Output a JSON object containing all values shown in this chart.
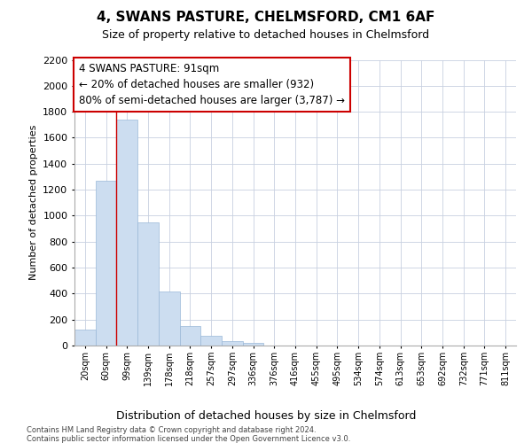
{
  "title": "4, SWANS PASTURE, CHELMSFORD, CM1 6AF",
  "subtitle": "Size of property relative to detached houses in Chelmsford",
  "xlabel": "Distribution of detached houses by size in Chelmsford",
  "ylabel": "Number of detached properties",
  "footnote1": "Contains HM Land Registry data © Crown copyright and database right 2024.",
  "footnote2": "Contains public sector information licensed under the Open Government Licence v3.0.",
  "bar_labels": [
    "20sqm",
    "60sqm",
    "99sqm",
    "139sqm",
    "178sqm",
    "218sqm",
    "257sqm",
    "297sqm",
    "336sqm",
    "376sqm",
    "416sqm",
    "455sqm",
    "495sqm",
    "534sqm",
    "574sqm",
    "613sqm",
    "653sqm",
    "692sqm",
    "732sqm",
    "771sqm",
    "811sqm"
  ],
  "bar_values": [
    120,
    1270,
    1740,
    950,
    415,
    150,
    75,
    35,
    20,
    0,
    0,
    0,
    0,
    0,
    0,
    0,
    0,
    0,
    0,
    0,
    0
  ],
  "bar_color": "#ccddf0",
  "bar_edge_color": "#9ab8d8",
  "ylim": [
    0,
    2200
  ],
  "yticks": [
    0,
    200,
    400,
    600,
    800,
    1000,
    1200,
    1400,
    1600,
    1800,
    2000,
    2200
  ],
  "red_line_x": 2.0,
  "annotation_text_line1": "4 SWANS PASTURE: 91sqm",
  "annotation_text_line2": "← 20% of detached houses are smaller (932)",
  "annotation_text_line3": "80% of semi-detached houses are larger (3,787) →",
  "annotation_box_color": "#cc0000",
  "background_color": "#ffffff",
  "grid_color": "#c8d0e0",
  "title_fontsize": 11,
  "subtitle_fontsize": 9,
  "ylabel_fontsize": 8,
  "xlabel_fontsize": 9,
  "tick_fontsize": 8,
  "xtick_fontsize": 7
}
